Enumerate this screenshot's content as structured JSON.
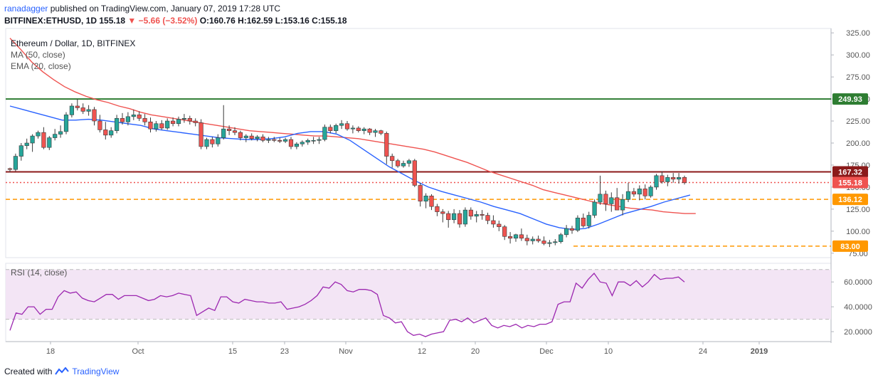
{
  "header": {
    "user": "ranadagger",
    "published_text": "published on",
    "site": "TradingView.com",
    "date_text": ", January 07, 2019 17:28 UTC",
    "symbol_line": "BITFINEX:ETHUSD, 1D",
    "last": "155.18",
    "change": "−5.66 (−3.52%)",
    "ohlc": "O:160.76 H:162.59 L:153.16 C:155.18"
  },
  "footer": {
    "created_with": "Created with",
    "brand": "TradingView"
  },
  "colors": {
    "up": "#26a69a",
    "down": "#ef5350",
    "ma50": "#ef5350",
    "ema20": "#2962ff",
    "resistance": "#8b1a1a",
    "top_line": "#2e7d32",
    "support": "#ff9800",
    "rsi_line": "#9c27b0",
    "rsi_band": "#f3e5f5"
  },
  "chart_data": [
    {
      "type": "candlestick",
      "title": "Ethereum / Dollar, 1D, BITFINEX",
      "indicators": [
        "MA (50, close)",
        "EMA (20, close)"
      ],
      "x_tick_labels": [
        "18",
        "Oct",
        "15",
        "23",
        "Nov",
        "12",
        "20",
        "Dec",
        "10",
        "24",
        "2019"
      ],
      "y_tick_labels": [
        "325.00",
        "300.00",
        "275.00",
        "250.00",
        "225.00",
        "200.00",
        "175.00",
        "150.00",
        "125.00",
        "100.00",
        "75.00"
      ],
      "ylim": [
        70,
        330
      ],
      "grid": false,
      "levels": [
        {
          "label": "249.93",
          "value": 249.93,
          "style": "solid",
          "color": "#2e7d32"
        },
        {
          "label": "167.32",
          "value": 167.32,
          "style": "solid",
          "color": "#8b1a1a"
        },
        {
          "label": "155.18",
          "value": 155.18,
          "style": "dotted",
          "color": "#ef5350"
        },
        {
          "label": "136.12",
          "value": 136.12,
          "style": "dashed",
          "color": "#ff9800"
        },
        {
          "label": "83.00",
          "value": 83.0,
          "style": "dashed",
          "color": "#ff9800"
        }
      ],
      "candles": [
        [
          171,
          172,
          167,
          170
        ],
        [
          170,
          188,
          168,
          185
        ],
        [
          185,
          200,
          180,
          197
        ],
        [
          197,
          205,
          193,
          200
        ],
        [
          200,
          210,
          190,
          208
        ],
        [
          208,
          214,
          205,
          212
        ],
        [
          212,
          218,
          193,
          195
        ],
        [
          195,
          208,
          192,
          206
        ],
        [
          206,
          216,
          203,
          210
        ],
        [
          210,
          220,
          206,
          213
        ],
        [
          213,
          235,
          210,
          232
        ],
        [
          232,
          245,
          229,
          242
        ],
        [
          242,
          250,
          237,
          240
        ],
        [
          240,
          245,
          233,
          236
        ],
        [
          236,
          243,
          231,
          238
        ],
        [
          238,
          241,
          220,
          225
        ],
        [
          225,
          232,
          212,
          215
        ],
        [
          215,
          224,
          204,
          209
        ],
        [
          209,
          218,
          206,
          214
        ],
        [
          214,
          232,
          211,
          228
        ],
        [
          228,
          234,
          221,
          224
        ],
        [
          224,
          235,
          220,
          230
        ],
        [
          230,
          238,
          226,
          232
        ],
        [
          232,
          236,
          225,
          228
        ],
        [
          228,
          233,
          220,
          224
        ],
        [
          224,
          229,
          212,
          216
        ],
        [
          216,
          225,
          213,
          222
        ],
        [
          222,
          226,
          215,
          217
        ],
        [
          217,
          228,
          215,
          225
        ],
        [
          225,
          229,
          219,
          222
        ],
        [
          222,
          230,
          219,
          227
        ],
        [
          227,
          233,
          223,
          228
        ],
        [
          228,
          231,
          221,
          225
        ],
        [
          225,
          228,
          219,
          223
        ],
        [
          223,
          227,
          193,
          196
        ],
        [
          196,
          206,
          193,
          204
        ],
        [
          204,
          207,
          195,
          199
        ],
        [
          199,
          210,
          196,
          206
        ],
        [
          206,
          243,
          204,
          216
        ],
        [
          216,
          220,
          209,
          214
        ],
        [
          214,
          218,
          209,
          212
        ],
        [
          212,
          214,
          203,
          206
        ],
        [
          206,
          210,
          201,
          208
        ],
        [
          208,
          211,
          203,
          205
        ],
        [
          205,
          209,
          202,
          207
        ],
        [
          207,
          210,
          201,
          203
        ],
        [
          203,
          207,
          200,
          204
        ],
        [
          204,
          207,
          201,
          203
        ],
        [
          203,
          206,
          200,
          202
        ],
        [
          202,
          206,
          200,
          204
        ],
        [
          204,
          207,
          193,
          196
        ],
        [
          196,
          201,
          193,
          199
        ],
        [
          199,
          203,
          196,
          201
        ],
        [
          201,
          205,
          198,
          203
        ],
        [
          203,
          207,
          199,
          203
        ],
        [
          203,
          207,
          199,
          204
        ],
        [
          204,
          221,
          202,
          218
        ],
        [
          218,
          221,
          211,
          214
        ],
        [
          214,
          222,
          211,
          220
        ],
        [
          220,
          226,
          216,
          222
        ],
        [
          222,
          225,
          214,
          216
        ],
        [
          216,
          220,
          211,
          217
        ],
        [
          217,
          219,
          212,
          214
        ],
        [
          214,
          218,
          210,
          216
        ],
        [
          216,
          217,
          209,
          212
        ],
        [
          212,
          216,
          207,
          214
        ],
        [
          214,
          215,
          209,
          211
        ],
        [
          211,
          213,
          176,
          185
        ],
        [
          185,
          188,
          172,
          180
        ],
        [
          180,
          182,
          172,
          174
        ],
        [
          174,
          180,
          172,
          177
        ],
        [
          177,
          182,
          173,
          180
        ],
        [
          180,
          182,
          150,
          152
        ],
        [
          152,
          155,
          128,
          134
        ],
        [
          134,
          143,
          126,
          140
        ],
        [
          140,
          142,
          124,
          128
        ],
        [
          128,
          131,
          117,
          122
        ],
        [
          122,
          125,
          110,
          120
        ],
        [
          120,
          123,
          104,
          113
        ],
        [
          113,
          125,
          109,
          120
        ],
        [
          120,
          124,
          104,
          108
        ],
        [
          108,
          127,
          105,
          124
        ],
        [
          124,
          127,
          113,
          117
        ],
        [
          117,
          123,
          110,
          119
        ],
        [
          119,
          124,
          113,
          118
        ],
        [
          118,
          121,
          108,
          112
        ],
        [
          112,
          118,
          104,
          108
        ],
        [
          108,
          112,
          100,
          105
        ],
        [
          105,
          107,
          90,
          94
        ],
        [
          94,
          99,
          86,
          92
        ],
        [
          92,
          97,
          88,
          96
        ],
        [
          96,
          103,
          89,
          92
        ],
        [
          92,
          96,
          84,
          89
        ],
        [
          89,
          94,
          85,
          91
        ],
        [
          91,
          95,
          87,
          89
        ],
        [
          89,
          94,
          84,
          86
        ],
        [
          86,
          90,
          82,
          87
        ],
        [
          87,
          91,
          84,
          88
        ],
        [
          88,
          98,
          86,
          96
        ],
        [
          96,
          107,
          93,
          103
        ],
        [
          103,
          106,
          97,
          101
        ],
        [
          101,
          118,
          99,
          115
        ],
        [
          115,
          120,
          104,
          106
        ],
        [
          106,
          122,
          103,
          118
        ],
        [
          118,
          136,
          115,
          133
        ],
        [
          133,
          163,
          130,
          142
        ],
        [
          142,
          146,
          123,
          131
        ],
        [
          131,
          144,
          122,
          138
        ],
        [
          138,
          149,
          126,
          124
        ],
        [
          124,
          142,
          118,
          136
        ],
        [
          136,
          155,
          133,
          145
        ],
        [
          145,
          149,
          139,
          142
        ],
        [
          142,
          152,
          135,
          148
        ],
        [
          148,
          153,
          136,
          140
        ],
        [
          140,
          152,
          138,
          150
        ],
        [
          150,
          165,
          147,
          163
        ],
        [
          163,
          168,
          154,
          156
        ],
        [
          156,
          164,
          151,
          161
        ],
        [
          161,
          166,
          155,
          159
        ],
        [
          159,
          166,
          154,
          161
        ],
        [
          161,
          163,
          153,
          155
        ]
      ],
      "series": [
        {
          "name": "MA (50, close)",
          "color": "#ef5350",
          "values_start": 0,
          "values": [
            319,
            306,
            292,
            281,
            272,
            264,
            258,
            253,
            249,
            246,
            242,
            239,
            235,
            232,
            230,
            228,
            226,
            224,
            222,
            220,
            218,
            216,
            214,
            213,
            212,
            211,
            210,
            209,
            208,
            208,
            207,
            206,
            205,
            203,
            201,
            199,
            197,
            195,
            193,
            190,
            186,
            182,
            178,
            173,
            168,
            164,
            160,
            156,
            152,
            147,
            144,
            141,
            138,
            135,
            132,
            130,
            128,
            126,
            125,
            124,
            122,
            121,
            120,
            120
          ]
        },
        {
          "name": "EMA (20, close)",
          "color": "#2962ff",
          "values_start": 0,
          "values": [
            242,
            238,
            234,
            230,
            226,
            226,
            227,
            226,
            224,
            222,
            220,
            216,
            214,
            212,
            210,
            208,
            206,
            205,
            204,
            204,
            205,
            207,
            211,
            213,
            213,
            210,
            203,
            193,
            183,
            173,
            165,
            157,
            150,
            145,
            141,
            137,
            133,
            128,
            124,
            120,
            114,
            108,
            104,
            102,
            103,
            108,
            114,
            120,
            124,
            128,
            133,
            137,
            141
          ]
        }
      ]
    },
    {
      "type": "line",
      "title": "RSI (14, close)",
      "y_tick_labels": [
        "60.0000",
        "40.0000",
        "20.0000"
      ],
      "ylim": [
        12,
        75
      ],
      "band": [
        30,
        70
      ],
      "series": [
        {
          "name": "RSI (14, close)",
          "color": "#9c27b0",
          "values": [
            21,
            35,
            34,
            40,
            40,
            34,
            38,
            38,
            48,
            53,
            51,
            52,
            47,
            45,
            44,
            47,
            50,
            50,
            46,
            49,
            49,
            49,
            47,
            45,
            46,
            49,
            48,
            49,
            51,
            50,
            49,
            33,
            36,
            39,
            37,
            48,
            48,
            44,
            43,
            46,
            45,
            44,
            44,
            43,
            43,
            44,
            38,
            39,
            40,
            42,
            45,
            49,
            56,
            55,
            60,
            58,
            53,
            52,
            54,
            54,
            53,
            50,
            33,
            31,
            27,
            28,
            20,
            17,
            18,
            16,
            18,
            19,
            20,
            29,
            30,
            28,
            31,
            27,
            29,
            31,
            25,
            23,
            25,
            24,
            26,
            23,
            25,
            24,
            26,
            26,
            28,
            42,
            44,
            44,
            59,
            55,
            62,
            67,
            60,
            59,
            49,
            60,
            60,
            57,
            61,
            56,
            60,
            66,
            62,
            63,
            63,
            64,
            60
          ]
        }
      ]
    }
  ]
}
